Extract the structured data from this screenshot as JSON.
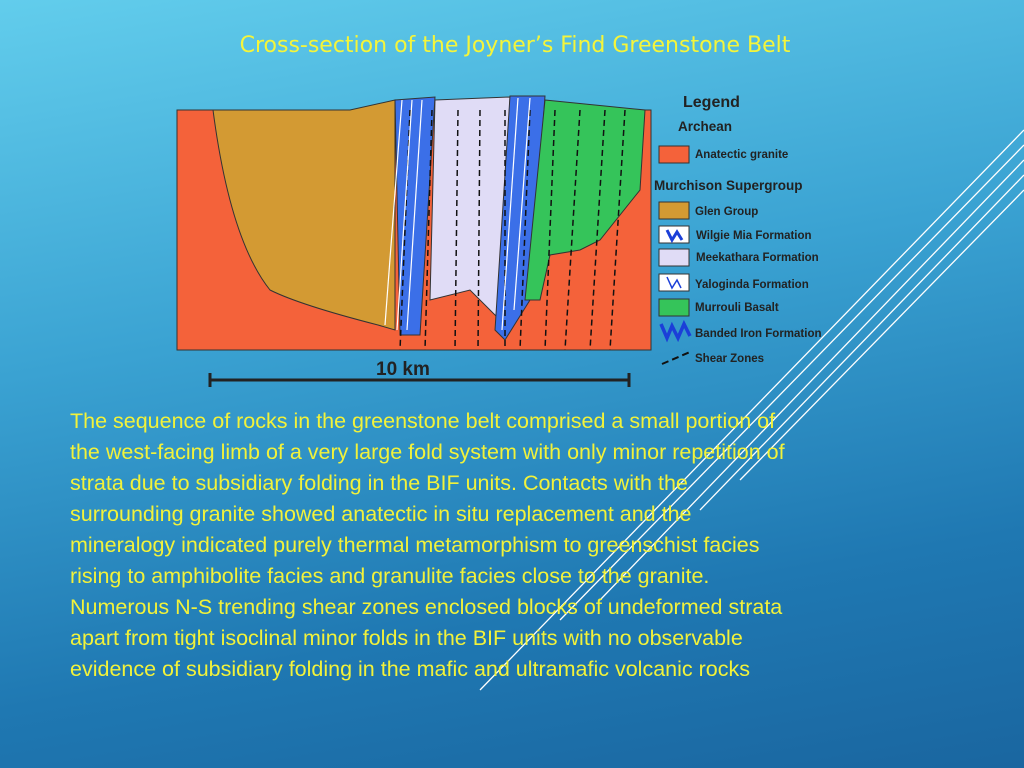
{
  "title": "Cross-section of the Joyner’s Find Greenstone Belt",
  "legend": {
    "heading": "Legend",
    "groups": [
      {
        "name": "Archean",
        "items": [
          "Anatectic granite"
        ]
      },
      {
        "name": "Murchison Supergroup",
        "items": [
          "Glen Group",
          "Wilgie Mia Formation",
          "Meekathara Formation",
          "Yaloginda Formation",
          "Murrouli Basalt",
          "Banded Iron Formation",
          "Shear Zones"
        ]
      }
    ]
  },
  "scale_bar": "10 km",
  "paragraph": [
    "The sequence of rocks in the greenstone belt comprised a small portion of",
    "the west-facing limb of a very large fold system with only minor repetition of",
    "strata due to subsidiary folding in the BIF units. Contacts with the",
    "surrounding granite showed anatectic in situ replacement and the",
    "mineralogy indicated purely thermal metamorphism to greenschist facies",
    "rising to amphibolite facies and granulite facies close to the granite.",
    "Numerous N-S trending shear zones enclosed blocks of undeformed strata",
    "apart from tight isoclinal minor folds in the BIF units with no observable",
    "evidence of subsidiary folding in the mafic and ultramafic volcanic rocks"
  ]
}
